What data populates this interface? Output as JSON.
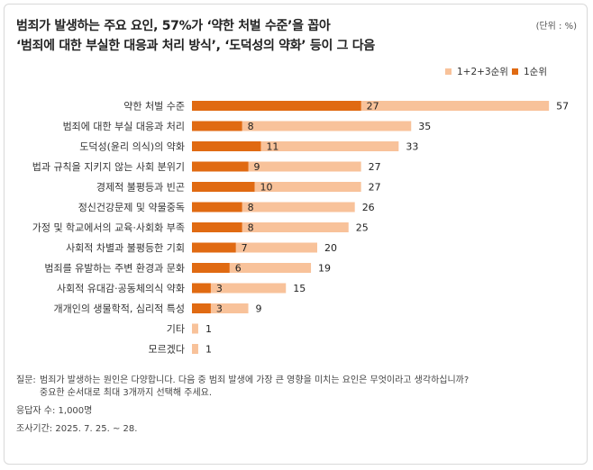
{
  "header": {
    "title_line1": "범죄가 발생하는 주요 요인, 57%가 ‘약한 처벌 수준’을 꼽아",
    "title_line2": "‘범죄에 대한 부실한 대응과 처리 방식’, ‘도덕성의 약화’ 등이 그 다음",
    "unit": "(단위 : %)"
  },
  "colors": {
    "rank123": "#f8c29a",
    "rank1": "#e06a12"
  },
  "chart_data": {
    "type": "bar",
    "orientation": "horizontal",
    "categories": [
      "약한 처벌 수준",
      "범죄에 대한 부실 대응과 처리",
      "도덕성(윤리 의식)의 약화",
      "법과 규칙을 지키지 않는 사회 분위기",
      "경제적 불평등과 빈곤",
      "정신건강문제 및 약물중독",
      "가정 및 학교에서의 교육·사회화 부족",
      "사회적 차별과 불평등한 기회",
      "범죄를 유발하는 주변 환경과 문화",
      "사회적 유대감·공동체의식 약화",
      "개개인의 생물학적, 심리적 특성",
      "기타",
      "모르겠다"
    ],
    "series": [
      {
        "name": "1+2+3순위",
        "values": [
          57,
          35,
          33,
          27,
          27,
          26,
          25,
          20,
          19,
          15,
          9,
          1,
          1
        ]
      },
      {
        "name": "1순위",
        "values": [
          27,
          8,
          11,
          9,
          10,
          8,
          8,
          7,
          6,
          3,
          3,
          null,
          null
        ]
      }
    ],
    "xlim": [
      0,
      60
    ],
    "legend_position": "top-right",
    "grid": false
  },
  "notes": {
    "question_label": "질문:",
    "question_line1": "범죄가 발생하는 원인은 다양합니다. 다음 중 범죄 발생에 가장 큰 영향을 미치는 요인은 무엇이라고 생각하십니까?",
    "question_line2": "중요한 순서대로 최대 3개까지 선택해 주세요.",
    "respondents": "응답자 수: 1,000명",
    "period": "조사기간: 2025. 7. 25. ~ 28."
  }
}
